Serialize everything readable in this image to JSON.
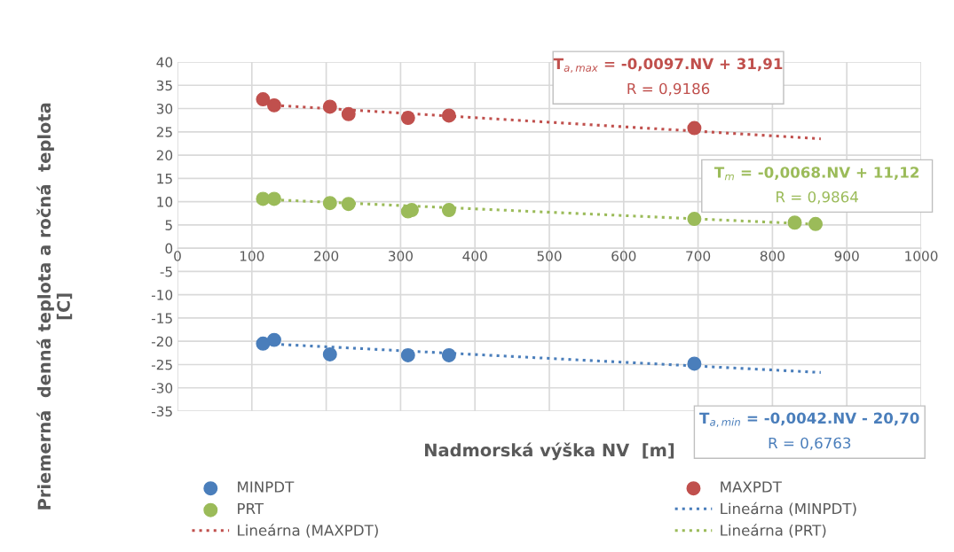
{
  "chart_data": {
    "type": "scatter",
    "xlabel": "Nadmorská výška NV  [m]",
    "ylabel": "Priemerná  denná teplota a ročná  teplota\n[C]",
    "xlim": [
      0,
      1000
    ],
    "xticks": [
      0,
      100,
      200,
      300,
      400,
      500,
      600,
      700,
      800,
      900,
      1000
    ],
    "ylim": [
      -35,
      40
    ],
    "yticks": [
      -35,
      -30,
      -25,
      -20,
      -15,
      -10,
      -5,
      0,
      5,
      10,
      15,
      20,
      25,
      30,
      35,
      40
    ],
    "grid": true,
    "legend": "bottom",
    "marker": "circle",
    "series": [
      {
        "name": "MINPDT",
        "color": "#4a7ebb",
        "x": [
          115,
          130,
          205,
          310,
          365,
          695
        ],
        "values": [
          -20.5,
          -19.7,
          -22.8,
          -23,
          -23,
          -24.8
        ]
      },
      {
        "name": "MAXPDT",
        "color": "#c0504d",
        "x": [
          115,
          130,
          205,
          230,
          310,
          365,
          695
        ],
        "values": [
          32,
          30.7,
          30.4,
          28.8,
          28,
          28.5,
          25.8
        ]
      },
      {
        "name": "PRT",
        "color": "#9bbb59",
        "x": [
          115,
          130,
          205,
          230,
          310,
          315,
          365,
          695,
          830,
          858
        ],
        "values": [
          10.6,
          10.6,
          9.7,
          9.5,
          7.9,
          8.2,
          8.2,
          6.3,
          5.5,
          5.2
        ]
      },
      {
        "name": "Lineárna (MINPDT)",
        "type": "line",
        "line_style": "dotted",
        "marker": "none",
        "color": "#4a7ebb",
        "x": [
          130,
          865
        ],
        "values": [
          -20.6,
          -26.7
        ]
      },
      {
        "name": "Lineárna (MAXPDT)",
        "type": "line",
        "line_style": "dotted",
        "marker": "none",
        "color": "#c0504d",
        "x": [
          130,
          865
        ],
        "values": [
          30.7,
          23.5
        ]
      },
      {
        "name": "Lineárna (PRT)",
        "type": "line",
        "line_style": "dotted",
        "marker": "none",
        "color": "#9bbb59",
        "x": [
          130,
          865
        ],
        "values": [
          10.4,
          5.1
        ]
      }
    ],
    "annotations": [
      "T$_{a,max}$ = -0,0097.NV + 31,91",
      "R = 0,9186",
      "T$_{m}$ = -0,0068.NV + 11,12",
      "R = 0,9864",
      "T$_{a,min}$ = -0,0042.NV - 20,70",
      "R = 0,6763"
    ]
  }
}
